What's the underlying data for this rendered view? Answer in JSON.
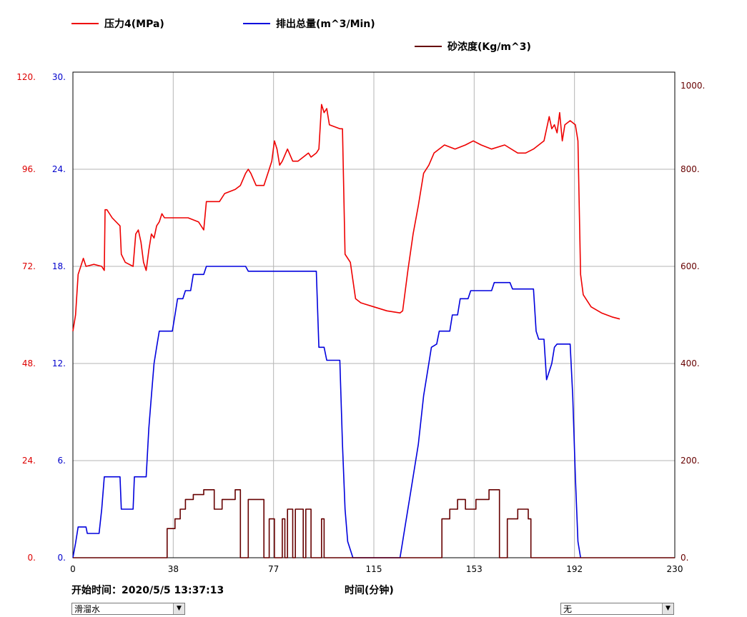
{
  "chart_data": {
    "type": "line",
    "x_axis": {
      "label": "时间(分钟)",
      "range": [
        0,
        230
      ],
      "ticks": [
        "0",
        "38",
        "77",
        "115",
        "153",
        "192",
        "230"
      ]
    },
    "y_axes": {
      "pressure": {
        "ticks": [
          "0.",
          "24.",
          "48.",
          "72.",
          "96.",
          "120."
        ],
        "range": [
          0,
          120
        ],
        "color": "#dd0000"
      },
      "flow": {
        "ticks": [
          "0.",
          "6.",
          "12.",
          "18.",
          "24.",
          "30."
        ],
        "range": [
          0,
          30
        ],
        "color": "#0000cc"
      },
      "sand": {
        "ticks": [
          "0.",
          "200.",
          "400.",
          "600.",
          "800.",
          "1000."
        ],
        "range": [
          0,
          1000
        ],
        "color": "#660000"
      }
    },
    "grid": "on",
    "series": [
      {
        "name": "压力4(MPa)",
        "axis": "pressure",
        "color": "#ee0000",
        "points": [
          [
            0,
            56
          ],
          [
            1,
            60
          ],
          [
            2,
            70
          ],
          [
            3,
            72
          ],
          [
            4,
            74
          ],
          [
            5,
            72
          ],
          [
            8,
            72.5
          ],
          [
            11,
            72
          ],
          [
            12,
            71
          ],
          [
            12.3,
            86
          ],
          [
            13,
            86
          ],
          [
            15,
            84
          ],
          [
            18,
            82
          ],
          [
            18.5,
            75
          ],
          [
            20,
            73
          ],
          [
            23,
            72
          ],
          [
            24,
            80
          ],
          [
            25,
            81
          ],
          [
            26,
            78
          ],
          [
            27,
            73
          ],
          [
            28,
            71
          ],
          [
            29,
            76
          ],
          [
            30,
            80
          ],
          [
            31,
            79
          ],
          [
            32,
            82
          ],
          [
            33,
            83
          ],
          [
            34,
            85
          ],
          [
            35,
            84
          ],
          [
            37,
            84
          ],
          [
            40,
            84
          ],
          [
            44,
            84
          ],
          [
            48,
            83
          ],
          [
            50,
            81
          ],
          [
            51,
            88
          ],
          [
            56,
            88
          ],
          [
            58,
            90
          ],
          [
            62,
            91
          ],
          [
            64,
            92
          ],
          [
            66,
            95
          ],
          [
            67,
            96
          ],
          [
            68,
            95
          ],
          [
            70,
            92
          ],
          [
            73,
            92
          ],
          [
            75,
            96
          ],
          [
            76,
            98
          ],
          [
            77,
            103
          ],
          [
            78,
            101
          ],
          [
            79,
            97
          ],
          [
            80,
            98
          ],
          [
            82,
            101
          ],
          [
            84,
            98
          ],
          [
            86,
            98
          ],
          [
            88,
            99
          ],
          [
            90,
            100
          ],
          [
            91,
            99
          ],
          [
            93,
            100
          ],
          [
            94,
            101
          ],
          [
            95,
            112
          ],
          [
            96,
            110
          ],
          [
            97,
            111
          ],
          [
            98,
            107
          ],
          [
            102,
            106
          ],
          [
            103,
            106
          ],
          [
            104,
            75
          ],
          [
            106,
            73
          ],
          [
            108,
            64
          ],
          [
            110,
            63
          ],
          [
            115,
            62
          ],
          [
            120,
            61
          ],
          [
            125,
            60.5
          ],
          [
            126,
            61
          ],
          [
            128,
            71
          ],
          [
            130,
            80
          ],
          [
            132,
            87
          ],
          [
            134,
            95
          ],
          [
            136,
            97
          ],
          [
            138,
            100
          ],
          [
            142,
            102
          ],
          [
            146,
            101
          ],
          [
            150,
            102
          ],
          [
            153,
            103
          ],
          [
            156,
            102
          ],
          [
            160,
            101
          ],
          [
            165,
            102
          ],
          [
            170,
            100
          ],
          [
            173,
            100
          ],
          [
            176,
            101
          ],
          [
            180,
            103
          ],
          [
            182,
            109
          ],
          [
            183,
            106
          ],
          [
            184,
            107
          ],
          [
            185,
            105
          ],
          [
            186,
            110
          ],
          [
            187,
            103
          ],
          [
            188,
            107
          ],
          [
            190,
            108
          ],
          [
            192,
            107
          ],
          [
            193,
            103
          ],
          [
            194,
            70
          ],
          [
            195,
            65
          ],
          [
            198,
            62
          ],
          [
            202,
            60.5
          ],
          [
            206,
            59.5
          ],
          [
            209,
            59
          ]
        ]
      },
      {
        "name": "排出总量(m^3/Min)",
        "axis": "flow",
        "color": "#0000dd",
        "points": [
          [
            0,
            0
          ],
          [
            1,
            0.9
          ],
          [
            2,
            1.9
          ],
          [
            5,
            1.9
          ],
          [
            5.5,
            1.5
          ],
          [
            10,
            1.5
          ],
          [
            11,
            3
          ],
          [
            12,
            5
          ],
          [
            18,
            5
          ],
          [
            18.5,
            3
          ],
          [
            23,
            3
          ],
          [
            23.5,
            5
          ],
          [
            28,
            5
          ],
          [
            29,
            8
          ],
          [
            30,
            10
          ],
          [
            31,
            12
          ],
          [
            32,
            13
          ],
          [
            33,
            14
          ],
          [
            38,
            14
          ],
          [
            39,
            15
          ],
          [
            40,
            16
          ],
          [
            42,
            16
          ],
          [
            43,
            16.5
          ],
          [
            45,
            16.5
          ],
          [
            46,
            17.5
          ],
          [
            50,
            17.5
          ],
          [
            51,
            18
          ],
          [
            66,
            18
          ],
          [
            67,
            17.7
          ],
          [
            93,
            17.7
          ],
          [
            94,
            13
          ],
          [
            96,
            13
          ],
          [
            97,
            12.2
          ],
          [
            102,
            12.2
          ],
          [
            103,
            7
          ],
          [
            104,
            3
          ],
          [
            105,
            1
          ],
          [
            107,
            0
          ],
          [
            125,
            0
          ],
          [
            126,
            1
          ],
          [
            127,
            2
          ],
          [
            128,
            3
          ],
          [
            129,
            4
          ],
          [
            130,
            5
          ],
          [
            132,
            7
          ],
          [
            134,
            10
          ],
          [
            136,
            12
          ],
          [
            137,
            13
          ],
          [
            139,
            13.2
          ],
          [
            140,
            14
          ],
          [
            144,
            14
          ],
          [
            145,
            15
          ],
          [
            147,
            15
          ],
          [
            148,
            16
          ],
          [
            151,
            16
          ],
          [
            152,
            16.5
          ],
          [
            160,
            16.5
          ],
          [
            161,
            17
          ],
          [
            167,
            17
          ],
          [
            168,
            16.6
          ],
          [
            176,
            16.6
          ],
          [
            177,
            14
          ],
          [
            178,
            13.5
          ],
          [
            180,
            13.5
          ],
          [
            181,
            11
          ],
          [
            182,
            11.5
          ],
          [
            183,
            12
          ],
          [
            184,
            13
          ],
          [
            185,
            13.2
          ],
          [
            190,
            13.2
          ],
          [
            191,
            10
          ],
          [
            192,
            5
          ],
          [
            193,
            1
          ],
          [
            194,
            0
          ]
        ]
      },
      {
        "name": "砂浓度(Kg/m^3)",
        "axis": "sand",
        "color": "#660000",
        "points": [
          [
            0,
            0
          ],
          [
            36,
            0
          ],
          [
            36,
            60
          ],
          [
            39,
            60
          ],
          [
            39,
            80
          ],
          [
            41,
            80
          ],
          [
            41,
            100
          ],
          [
            43,
            100
          ],
          [
            43,
            120
          ],
          [
            46,
            120
          ],
          [
            46,
            130
          ],
          [
            50,
            130
          ],
          [
            50,
            140
          ],
          [
            54,
            140
          ],
          [
            54,
            100
          ],
          [
            57,
            100
          ],
          [
            57,
            120
          ],
          [
            62,
            120
          ],
          [
            62,
            140
          ],
          [
            64,
            140
          ],
          [
            64,
            0
          ],
          [
            67,
            0
          ],
          [
            67,
            120
          ],
          [
            73,
            120
          ],
          [
            73,
            0
          ],
          [
            75,
            0
          ],
          [
            75,
            80
          ],
          [
            77,
            80
          ],
          [
            77,
            0
          ],
          [
            80,
            0
          ],
          [
            80,
            80
          ],
          [
            81,
            80
          ],
          [
            81,
            0
          ],
          [
            82,
            0
          ],
          [
            82,
            100
          ],
          [
            84,
            100
          ],
          [
            84,
            0
          ],
          [
            85,
            0
          ],
          [
            85,
            100
          ],
          [
            88,
            100
          ],
          [
            88,
            0
          ],
          [
            89,
            0
          ],
          [
            89,
            100
          ],
          [
            91,
            100
          ],
          [
            91,
            0
          ],
          [
            95,
            0
          ],
          [
            95,
            80
          ],
          [
            96,
            80
          ],
          [
            96,
            0
          ],
          [
            141,
            0
          ],
          [
            141,
            80
          ],
          [
            144,
            80
          ],
          [
            144,
            100
          ],
          [
            147,
            100
          ],
          [
            147,
            120
          ],
          [
            150,
            120
          ],
          [
            150,
            100
          ],
          [
            154,
            100
          ],
          [
            154,
            120
          ],
          [
            159,
            120
          ],
          [
            159,
            140
          ],
          [
            163,
            140
          ],
          [
            163,
            0
          ],
          [
            166,
            0
          ],
          [
            166,
            80
          ],
          [
            170,
            80
          ],
          [
            170,
            100
          ],
          [
            174,
            100
          ],
          [
            174,
            80
          ],
          [
            175,
            80
          ],
          [
            175,
            0
          ],
          [
            230,
            0
          ]
        ]
      }
    ]
  },
  "start": {
    "label": "开始时间：",
    "value": "2020/5/5 13:37:13"
  },
  "controls": {
    "left_select": {
      "value": "滑溜水"
    },
    "right_select": {
      "value": "无"
    }
  }
}
